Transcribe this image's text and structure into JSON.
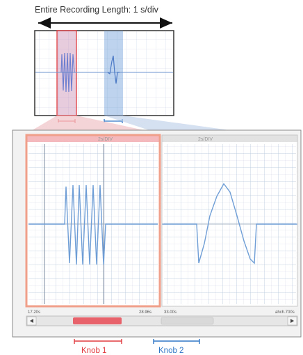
{
  "title": "Entire Recording Length: 1 s/div",
  "left_pane": {
    "header_label": "2s/DIV",
    "time_start": "17.20s",
    "time_end": "28.96s"
  },
  "right_pane": {
    "header_label": "2s/DIV",
    "time_start": "33.00s",
    "time_end": "ahch.700s"
  },
  "knob1": {
    "label": "Knob 1"
  },
  "knob2": {
    "label": "Knob 2"
  },
  "colors": {
    "knob1": "#e03a3e",
    "knob2": "#2f76c6",
    "trace": "#5b8fd6",
    "grid": "#c9d6e6"
  },
  "icons": {
    "scroll_left": "triangle-left-icon",
    "scroll_right": "triangle-right-icon"
  }
}
